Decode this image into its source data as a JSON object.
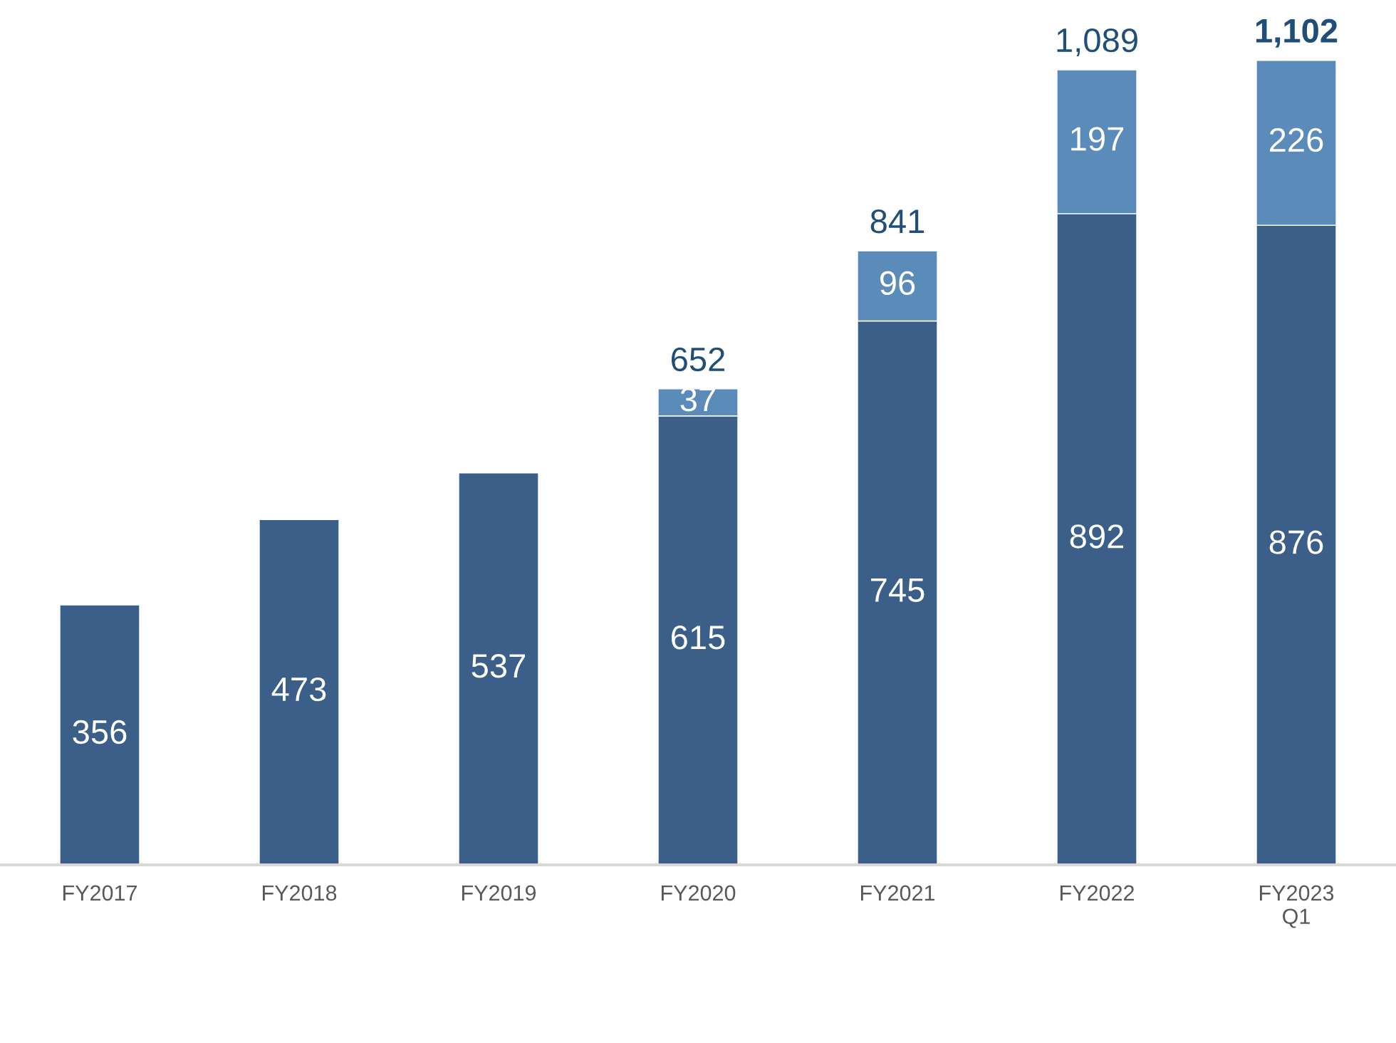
{
  "chart_data": {
    "type": "bar",
    "stacked": true,
    "categories": [
      "FY2017",
      "FY2018",
      "FY2019",
      "FY2020",
      "FY2021",
      "FY2022",
      "FY2023\nQ1"
    ],
    "series": [
      {
        "color": "#3b5f89",
        "values": [
          356,
          473,
          537,
          615,
          745,
          892,
          876
        ]
      },
      {
        "color": "#5b8bb9",
        "values": [
          null,
          null,
          null,
          37,
          96,
          197,
          226
        ]
      }
    ],
    "data_labels": true,
    "totals": [
      null,
      null,
      null,
      "652",
      "841",
      "1,089",
      "1,102"
    ],
    "grid": false,
    "legend": false
  }
}
